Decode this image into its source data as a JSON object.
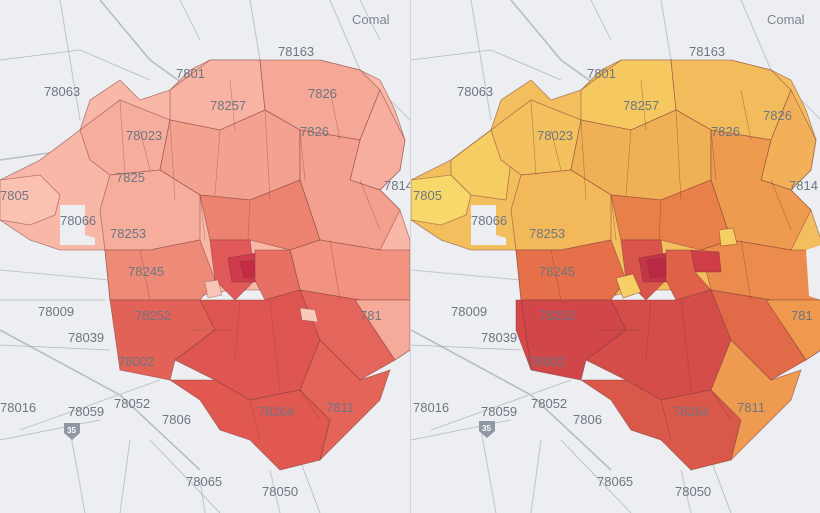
{
  "maps": [
    {
      "name": "left-choropleth",
      "palette": [
        "#f9b7a8",
        "#f6a190",
        "#f08a78",
        "#e86c5f",
        "#de4e4f",
        "#c92d44"
      ],
      "labels": {
        "comal": "Comal",
        "z78163": "78163",
        "z78015": "7801",
        "z78063": "78063",
        "z78257": "78257",
        "z78023": "78023",
        "z78260": "7826",
        "z78266": "7826",
        "z78148": "7814",
        "z78254": "7825",
        "z78066": "78066",
        "z78253": "78253",
        "z78245": "78245",
        "z78252": "78252",
        "z78009": "78009",
        "z78039": "78039",
        "z78002": "78002",
        "z78016": "78016",
        "z78059": "78059",
        "z78052": "78052",
        "z78069": "7806",
        "z78264": "78264",
        "z78112": "7811",
        "z78065": "78065",
        "z78050": "78050",
        "z78056": "7805",
        "z78101": "781"
      }
    },
    {
      "name": "right-choropleth",
      "palette": [
        "#f6d36a",
        "#f4c35f",
        "#f2aa55",
        "#ee8f4c",
        "#e56c48",
        "#d54a45",
        "#bf2a45"
      ],
      "labels": {
        "comal": "Comal",
        "z78163": "78163",
        "z78015": "7801",
        "z78063": "78063",
        "z78257": "78257",
        "z78023": "78023",
        "z78260": "7826",
        "z78266": "7826",
        "z78148": "7814",
        "z78066": "78066",
        "z78253": "78253",
        "z78245": "78245",
        "z78252": "78252",
        "z78009": "78009",
        "z78039": "78039",
        "z78002": "78002",
        "z78016": "78016",
        "z78059": "78059",
        "z78052": "78052",
        "z78069": "7806",
        "z78264": "78264",
        "z78112": "7811",
        "z78065": "78065",
        "z78050": "78050",
        "z78056": "7805",
        "z78101": "781"
      }
    }
  ],
  "highway_shield": "35"
}
